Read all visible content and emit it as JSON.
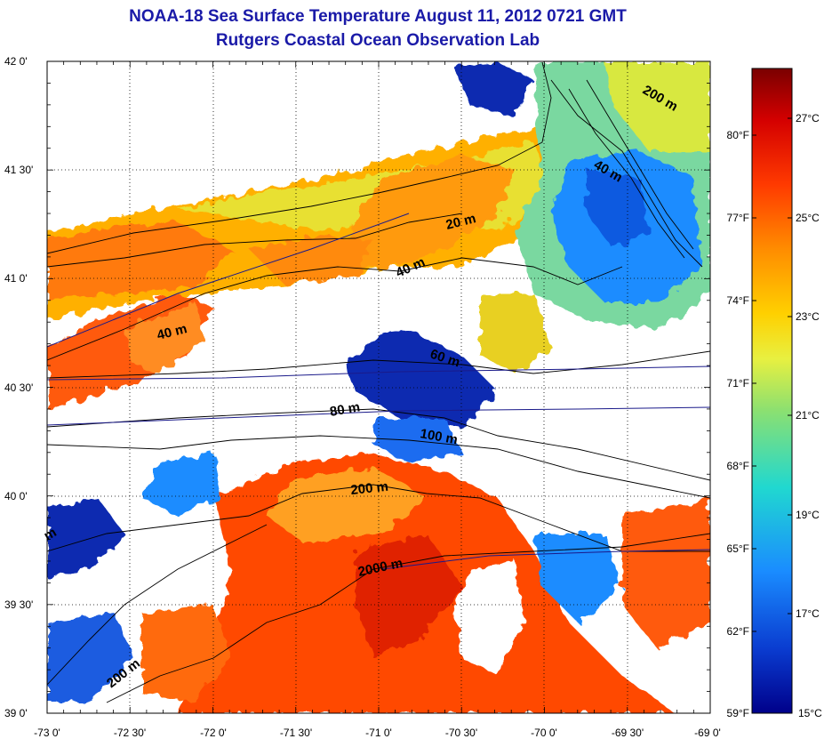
{
  "title": "NOAA-18 Sea Surface Temperature August 11, 2012 0721 GMT",
  "subtitle": "Rutgers Coastal Ocean Observation Lab",
  "map": {
    "lon_ticks": [
      "-73 0'",
      "-72 30'",
      "-72 0'",
      "-71 30'",
      "-71 0'",
      "-70 30'",
      "-70 0'",
      "-69 30'",
      "-69 0'"
    ],
    "lat_ticks": [
      "42 0'",
      "41 30'",
      "41 0'",
      "40 30'",
      "40 0'",
      "39 30'",
      "39 0'"
    ],
    "lon_range": [
      -73,
      -69
    ],
    "lat_range": [
      39,
      42
    ],
    "grid": true
  },
  "isobaths": [
    {
      "label": "20 m"
    },
    {
      "label": "40 m"
    },
    {
      "label": "40 m"
    },
    {
      "label": "40 m"
    },
    {
      "label": "60 m"
    },
    {
      "label": "80 m"
    },
    {
      "label": "100 m"
    },
    {
      "label": "200 m"
    },
    {
      "label": "200 m"
    },
    {
      "label": "200 m"
    },
    {
      "label": "2000 m"
    },
    {
      "label": "m"
    }
  ],
  "colorbar": {
    "celsius_labels": [
      "27°C",
      "25°C",
      "23°C",
      "21°C",
      "19°C",
      "17°C",
      "15°C"
    ],
    "fahrenheit_labels": [
      "80°F",
      "77°F",
      "74°F",
      "71°F",
      "68°F",
      "65°F",
      "62°F",
      "59°F"
    ],
    "colors": [
      "#7a0000",
      "#d40000",
      "#ff3a00",
      "#ff8c00",
      "#ffd000",
      "#e8f040",
      "#8ce070",
      "#20d8d0",
      "#1a8cff",
      "#0a3cd0",
      "#00008a"
    ]
  }
}
